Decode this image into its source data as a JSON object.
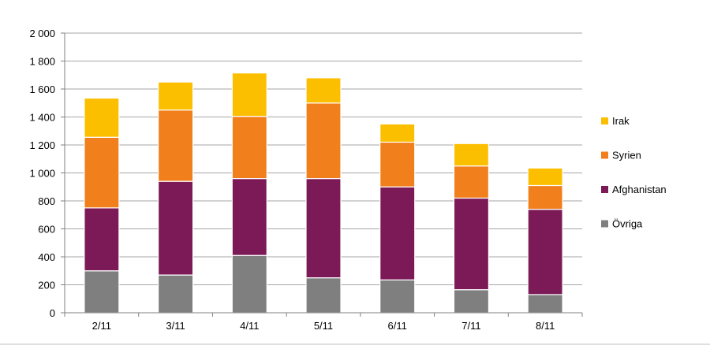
{
  "chart_data": {
    "type": "bar",
    "stacked": true,
    "categories": [
      "2/11",
      "3/11",
      "4/11",
      "5/11",
      "6/11",
      "7/11",
      "8/11"
    ],
    "series": [
      {
        "name": "Övriga",
        "color": "#7f7f7f",
        "values": [
          300,
          270,
          410,
          250,
          235,
          165,
          130
        ]
      },
      {
        "name": "Afghanistan",
        "color": "#7b1a57",
        "values": [
          450,
          670,
          550,
          710,
          665,
          655,
          610
        ]
      },
      {
        "name": "Syrien",
        "color": "#f07f1c",
        "values": [
          505,
          510,
          445,
          540,
          320,
          230,
          170
        ]
      },
      {
        "name": "Irak",
        "color": "#fcbf00",
        "values": [
          280,
          200,
          310,
          180,
          130,
          160,
          125
        ]
      }
    ],
    "yticks": [
      "0",
      "200",
      "400",
      "600",
      "800",
      "1 000",
      "1 200",
      "1 400",
      "1 600",
      "1 800",
      "2 000"
    ],
    "ylim": [
      0,
      2000
    ],
    "grid": true,
    "legend": "right",
    "legend_order": [
      "Irak",
      "Syrien",
      "Afghanistan",
      "Övriga"
    ]
  }
}
